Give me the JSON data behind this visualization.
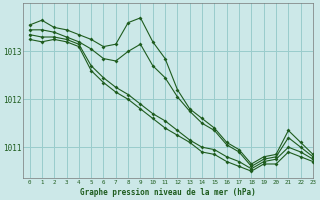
{
  "title": "Graphe pression niveau de la mer (hPa)",
  "background_color": "#cce8e8",
  "grid_color": "#99cccc",
  "line_color": "#1e5c1e",
  "xlim": [
    -0.5,
    23
  ],
  "ylim": [
    1010.35,
    1014.0
  ],
  "yticks": [
    1011,
    1012,
    1013
  ],
  "xticks": [
    0,
    1,
    2,
    3,
    4,
    5,
    6,
    7,
    8,
    9,
    10,
    11,
    12,
    13,
    14,
    15,
    16,
    17,
    18,
    19,
    20,
    21,
    22,
    23
  ],
  "series": [
    [
      1013.55,
      1013.65,
      1013.5,
      1013.45,
      1013.35,
      1013.25,
      1013.1,
      1013.15,
      1013.6,
      1013.7,
      1013.2,
      1012.85,
      1012.2,
      1011.8,
      1011.6,
      1011.4,
      1011.1,
      1010.95,
      1010.65,
      1010.8,
      1010.85,
      1011.35,
      1011.1,
      1010.85
    ],
    [
      1013.45,
      1013.45,
      1013.4,
      1013.3,
      1013.2,
      1013.05,
      1012.85,
      1012.8,
      1013.0,
      1013.15,
      1012.7,
      1012.45,
      1012.05,
      1011.75,
      1011.5,
      1011.35,
      1011.05,
      1010.9,
      1010.6,
      1010.75,
      1010.8,
      1011.2,
      1011.0,
      1010.8
    ],
    [
      1013.35,
      1013.3,
      1013.3,
      1013.25,
      1013.15,
      1012.7,
      1012.45,
      1012.25,
      1012.1,
      1011.9,
      1011.7,
      1011.55,
      1011.35,
      1011.15,
      1011.0,
      1010.95,
      1010.8,
      1010.7,
      1010.55,
      1010.7,
      1010.75,
      1011.0,
      1010.9,
      1010.75
    ],
    [
      1013.25,
      1013.2,
      1013.25,
      1013.2,
      1013.1,
      1012.6,
      1012.35,
      1012.15,
      1012.0,
      1011.8,
      1011.6,
      1011.4,
      1011.25,
      1011.1,
      1010.9,
      1010.85,
      1010.7,
      1010.6,
      1010.5,
      1010.65,
      1010.65,
      1010.9,
      1010.8,
      1010.7
    ]
  ]
}
